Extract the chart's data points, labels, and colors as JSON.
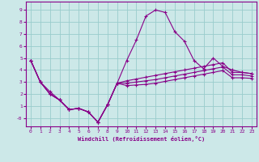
{
  "xlabel": "Windchill (Refroidissement éolien,°C)",
  "bg_color": "#cce8e8",
  "line_color": "#880088",
  "grid_color": "#99cccc",
  "spine_color": "#880088",
  "xlim": [
    -0.5,
    23.5
  ],
  "ylim": [
    -0.7,
    9.7
  ],
  "xticks": [
    0,
    1,
    2,
    3,
    4,
    5,
    6,
    7,
    8,
    9,
    10,
    11,
    12,
    13,
    14,
    15,
    16,
    17,
    18,
    19,
    20,
    21,
    22,
    23
  ],
  "yticks": [
    0,
    1,
    2,
    3,
    4,
    5,
    6,
    7,
    8,
    9
  ],
  "ytick_labels": [
    "-0",
    "1",
    "2",
    "3",
    "4",
    "5",
    "6",
    "7",
    "8",
    "9"
  ],
  "lines": [
    {
      "y": [
        4.8,
        3.0,
        2.0,
        1.5,
        0.7,
        0.8,
        0.5,
        -0.35,
        1.1,
        2.9,
        4.8,
        6.5,
        8.5,
        9.0,
        8.8,
        7.2,
        6.4,
        4.8,
        4.1,
        5.0,
        4.3,
        4.0,
        3.8,
        3.7
      ]
    },
    {
      "y": [
        4.8,
        3.0,
        2.0,
        1.5,
        0.7,
        0.8,
        0.5,
        -0.35,
        1.1,
        2.9,
        3.1,
        3.25,
        3.4,
        3.55,
        3.7,
        3.85,
        4.0,
        4.15,
        4.3,
        4.45,
        4.6,
        3.8,
        3.8,
        3.7
      ]
    },
    {
      "y": [
        4.8,
        3.0,
        2.0,
        1.5,
        0.7,
        0.8,
        0.5,
        -0.35,
        1.1,
        2.9,
        2.9,
        3.0,
        3.1,
        3.2,
        3.35,
        3.5,
        3.65,
        3.8,
        3.95,
        4.1,
        4.25,
        3.6,
        3.6,
        3.5
      ]
    },
    {
      "y": [
        4.8,
        3.0,
        2.2,
        1.5,
        0.7,
        0.8,
        0.5,
        -0.35,
        1.1,
        2.9,
        2.7,
        2.75,
        2.8,
        2.9,
        3.05,
        3.2,
        3.35,
        3.5,
        3.65,
        3.8,
        3.95,
        3.35,
        3.35,
        3.3
      ]
    }
  ]
}
